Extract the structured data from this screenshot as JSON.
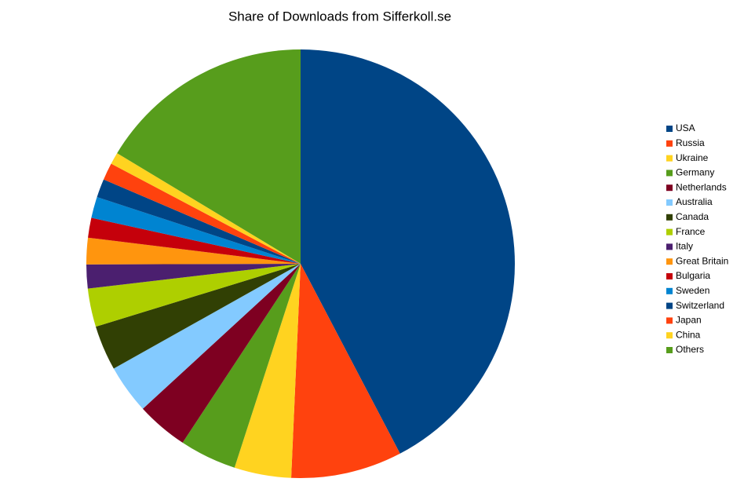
{
  "chart_data": {
    "type": "pie",
    "title": "Share of Downloads from Sifferkoll.se",
    "categories": [
      "USA",
      "Russia",
      "Ukraine",
      "Germany",
      "Netherlands",
      "Australia",
      "Canada",
      "France",
      "Italy",
      "Great Britain",
      "Bulgaria",
      "Sweden",
      "Switzerland",
      "Japan",
      "China",
      "Others"
    ],
    "values": [
      42.4,
      8.4,
      4.3,
      4.3,
      3.9,
      3.7,
      3.4,
      2.9,
      1.8,
      2.0,
      1.5,
      1.6,
      1.4,
      1.3,
      0.9,
      16.4
    ],
    "colors": [
      "#004586",
      "#ff420e",
      "#ffd320",
      "#579d1c",
      "#7e0021",
      "#83caff",
      "#314004",
      "#aecf00",
      "#4b1f6f",
      "#ff950e",
      "#c5000b",
      "#0084d1",
      "#004586",
      "#ff420e",
      "#ffd320",
      "#579d1c"
    ],
    "legend": "right"
  }
}
